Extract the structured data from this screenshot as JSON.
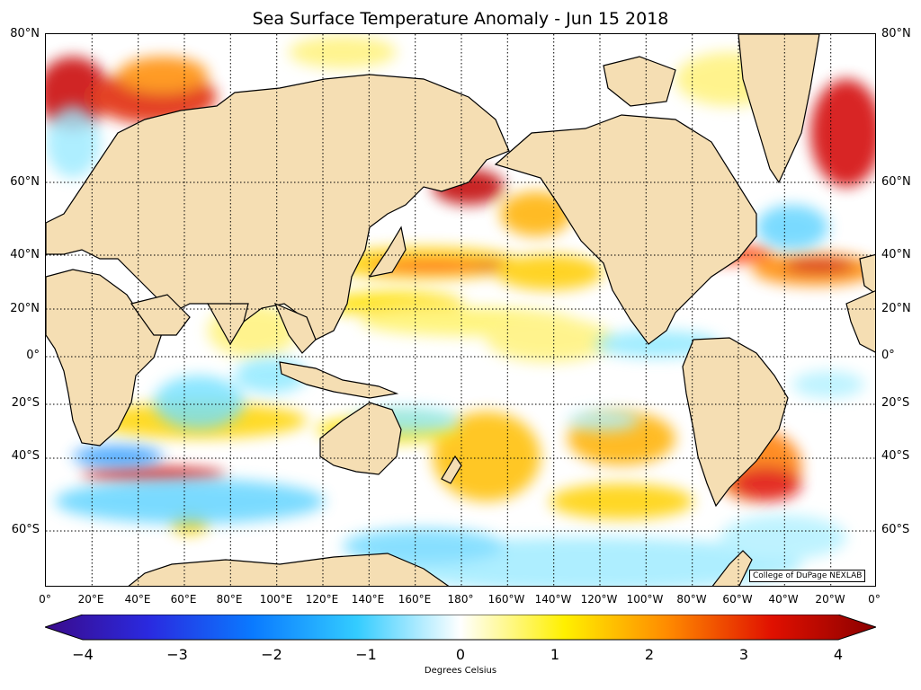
{
  "title": "Sea Surface Temperature Anomaly - Jun 15 2018",
  "credit": "College of DuPage NEXLAB",
  "lat_labels_left": [
    "80°N",
    "60°N",
    "40°N",
    "20°N",
    "0°",
    "20°S",
    "40°S",
    "60°S"
  ],
  "lat_labels_right": [
    "80°N",
    "60°N",
    "40°N",
    "20°N",
    "0°",
    "20°S",
    "40°S",
    "60°S"
  ],
  "lon_labels": [
    "0°",
    "20°E",
    "40°E",
    "60°E",
    "80°E",
    "100°E",
    "120°E",
    "140°E",
    "160°E",
    "180°",
    "160°W",
    "140°W",
    "120°W",
    "100°W",
    "80°W",
    "60°W",
    "40°W",
    "20°W",
    "0°"
  ],
  "colorbar": {
    "ticks": [
      "−4",
      "−3",
      "−2",
      "−1",
      "0",
      "1",
      "2",
      "3",
      "4"
    ],
    "unit_label": "Degrees Celsius",
    "colors": [
      "#3a0a8a",
      "#2a2ae0",
      "#0a7aff",
      "#33ccff",
      "#ffffff",
      "#fff000",
      "#ff8a00",
      "#e01000",
      "#8a0000"
    ]
  },
  "colors": {
    "land": "#f5deb3",
    "ocean_neutral": "#ffffff",
    "warm_anomaly": "#d20000",
    "cool_anomaly": "#2fc4ff"
  }
}
